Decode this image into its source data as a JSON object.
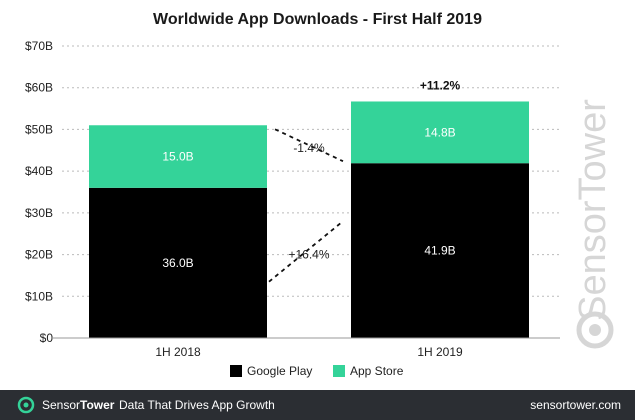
{
  "chart_data": {
    "type": "bar",
    "stacked": true,
    "title": "Worldwide App Downloads - First Half 2019",
    "categories": [
      "1H 2018",
      "1H 2019"
    ],
    "series": [
      {
        "name": "Google Play",
        "color": "#000000",
        "values": [
          36.0,
          41.9
        ],
        "labels": [
          "36.0B",
          "41.9B"
        ]
      },
      {
        "name": "App Store",
        "color": "#34d399",
        "values": [
          15.0,
          14.8
        ],
        "labels": [
          "15.0B",
          "14.8B"
        ]
      }
    ],
    "ylim": [
      0,
      70
    ],
    "yticks": [
      0,
      10,
      20,
      30,
      40,
      50,
      60,
      70
    ],
    "ytick_labels": [
      "$0",
      "$10B",
      "$20B",
      "$30B",
      "$40B",
      "$50B",
      "$60B",
      "$70B"
    ],
    "grid": true,
    "legend": "bottom",
    "annotations": {
      "app_store_change": "-1.4%",
      "google_play_change": "+16.4%",
      "total_change": "+11.2%"
    }
  },
  "watermark": "SensorTower",
  "footer": {
    "brand_light": "Sensor",
    "brand_bold": "Tower",
    "tagline": "Data That Drives App Growth",
    "site": "sensortower.com"
  }
}
